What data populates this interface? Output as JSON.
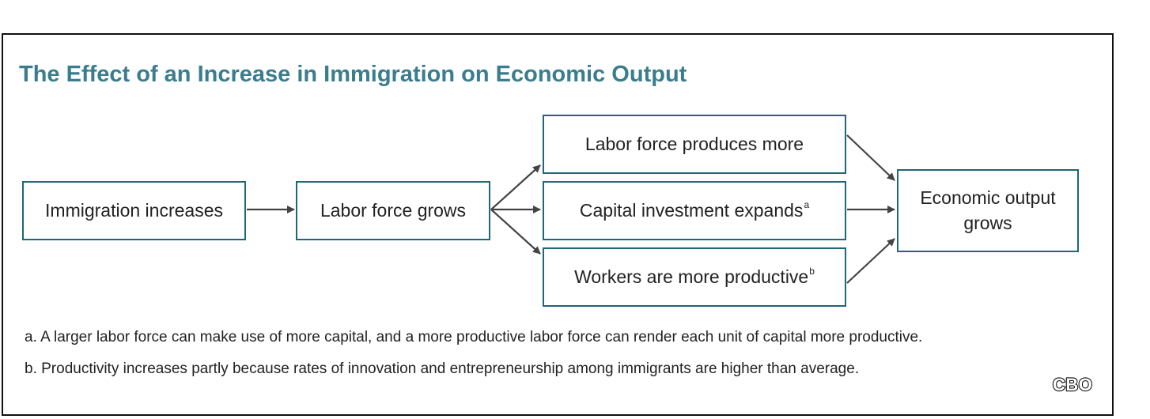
{
  "title": "The Effect of an Increase in Immigration on Economic Output",
  "boxes": {
    "immigration_increases": "Immigration increases",
    "labor_force_grows": "Labor force grows",
    "labor_force_produces_more": "Labor force produces more",
    "capital_investment_expands": "Capital investment expands",
    "capital_investment_marker": "a",
    "workers_more_productive": "Workers are more productive",
    "workers_more_productive_marker": "b",
    "economic_output_grows": "Economic output grows"
  },
  "notes": {
    "a": "a. A larger labor force can make use of more capital, and a more productive labor force can render each unit of capital more productive.",
    "b": "b. Productivity increases partly because rates of innovation and entrepreneurship among immigrants are higher than average."
  },
  "logo": "CBO",
  "colors": {
    "title": "#3a7d8e",
    "box_border": "#1f6676",
    "arrow": "#444444",
    "frame": "#111111"
  }
}
